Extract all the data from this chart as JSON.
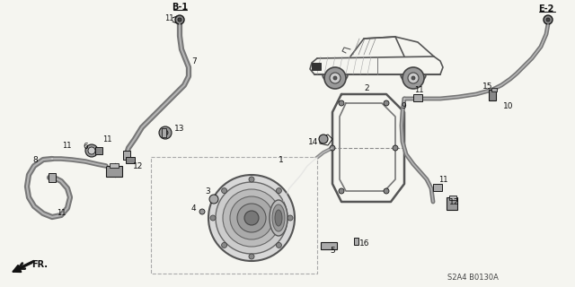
{
  "background_color": "#f5f5f0",
  "line_color": "#1a1a1a",
  "text_color": "#111111",
  "diagram_code": "S2A4 B0130A",
  "fig_width": 6.4,
  "fig_height": 3.2,
  "dpi": 100,
  "gray_light": "#cccccc",
  "gray_mid": "#999999",
  "gray_dark": "#555555",
  "border_gray": "#aaaaaa"
}
